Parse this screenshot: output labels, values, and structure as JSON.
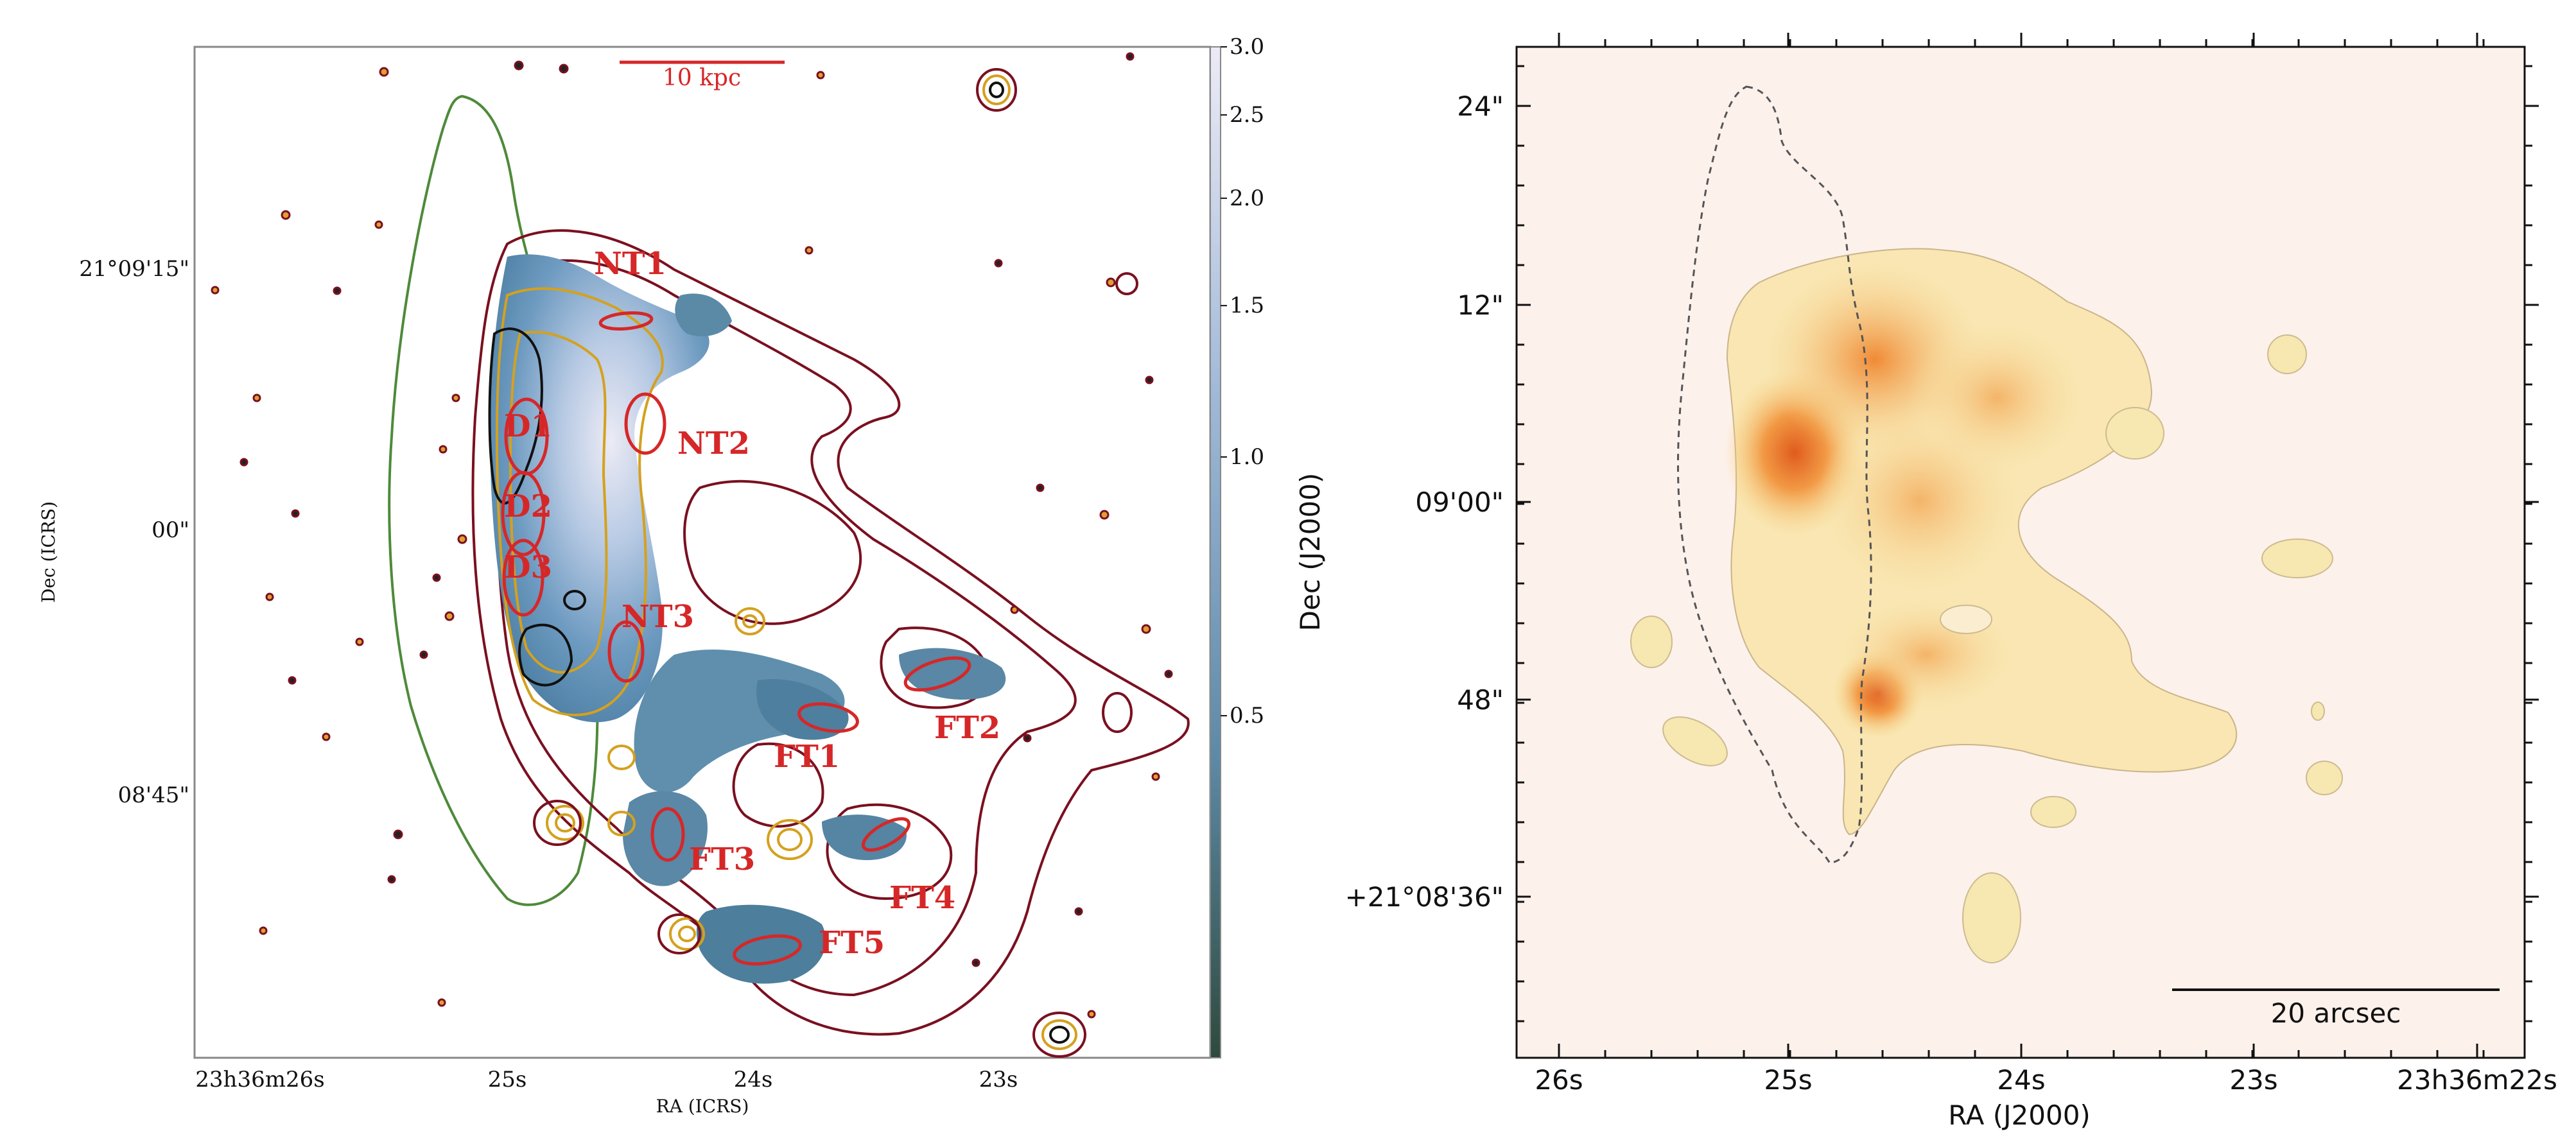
{
  "chart_data": [
    {
      "type": "image",
      "panel": "left",
      "xlabel": "RA (ICRS)",
      "ylabel": "Dec (ICRS)",
      "x_ticks": [
        "23h36m26s",
        "25s",
        "24s",
        "23s"
      ],
      "y_ticks": [
        "21°09'15\"",
        "00\"",
        "08'45\""
      ],
      "scale_bar": "10 kpc",
      "colorbar": {
        "ticks": [
          "3.0",
          "2.5",
          "2.0",
          "1.5",
          "1.0",
          "0.5"
        ],
        "tick_values": [
          3.0,
          2.5,
          2.0,
          1.5,
          1.0,
          0.5
        ],
        "range": [
          0.2,
          3.0
        ],
        "scale": "log",
        "colors": [
          "#2e4a3d",
          "#5d8aa8",
          "#9fb8d8",
          "#e8e8f4"
        ]
      },
      "regions": [
        "NT1",
        "NT2",
        "NT3",
        "D1",
        "D2",
        "D3",
        "FT1",
        "FT2",
        "FT3",
        "FT4",
        "FT5"
      ],
      "colors": {
        "regions": "#d62728",
        "outer_contours": "#7a1020",
        "gold_contours": "#d4a11e",
        "stellar_disk": "#4e8a3a"
      }
    },
    {
      "type": "heatmap",
      "panel": "right",
      "xlabel": "RA (J2000)",
      "ylabel": "Dec (J2000)",
      "x_ticks": [
        "26s",
        "25s",
        "24s",
        "23s",
        "23h36m22s"
      ],
      "y_ticks": [
        "24\"",
        "12\"",
        "09'00\"",
        "48\"",
        "+21°08'36\""
      ],
      "scale_bar": "20 arcsec",
      "colors": {
        "background": "#fdf1ec",
        "low": "#f7edb6",
        "mid": "#f4a34c",
        "high": "#e06a21"
      }
    }
  ]
}
